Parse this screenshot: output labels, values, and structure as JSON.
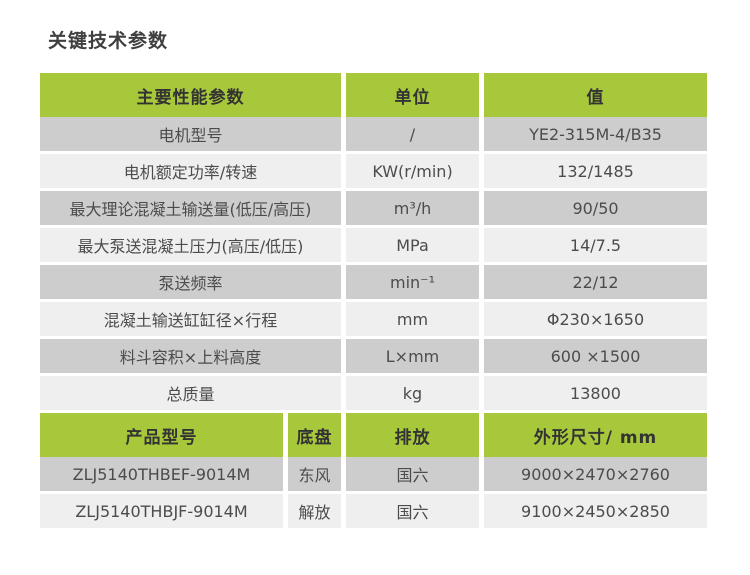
{
  "page": {
    "title": "关键技术参数"
  },
  "colors": {
    "accent_green": "#a8c83c",
    "row_dark": "#cdcdce",
    "row_light": "#efefef",
    "header_text": "#333333",
    "body_text": "#4c4c4c",
    "page_bg": "#ffffff"
  },
  "table1": {
    "headers": [
      "主要性能参数",
      "单位",
      "值"
    ],
    "rows": [
      {
        "param": "电机型号",
        "unit": "/",
        "value": "YE2-315M-4/B35"
      },
      {
        "param": "电机额定功率/转速",
        "unit": "KW(r/min)",
        "value": "132/1485"
      },
      {
        "param": "最大理论混凝土输送量(低压/高压)",
        "unit": "m³/h",
        "value": "90/50"
      },
      {
        "param": "最大泵送混凝土压力(高压/低压)",
        "unit": "MPa",
        "value": "14/7.5"
      },
      {
        "param": "泵送频率",
        "unit": "min⁻¹",
        "value": "22/12"
      },
      {
        "param": "混凝土输送缸缸径×行程",
        "unit": "mm",
        "value": "Φ230×1650"
      },
      {
        "param": "料斗容积×上料高度",
        "unit": "L×mm",
        "value": "600 ×1500"
      },
      {
        "param": "总质量",
        "unit": "kg",
        "value": "13800"
      }
    ]
  },
  "table2": {
    "headers": [
      "产品型号",
      "底盘",
      "排放",
      "外形尺寸/ mm"
    ],
    "rows": [
      {
        "model": "ZLJ5140THBEF-9014M",
        "chassis": "东风",
        "emission": "国六",
        "dimensions": "9000×2470×2760"
      },
      {
        "model": "ZLJ5140THBJF-9014M",
        "chassis": "解放",
        "emission": "国六",
        "dimensions": "9100×2450×2850"
      }
    ]
  }
}
